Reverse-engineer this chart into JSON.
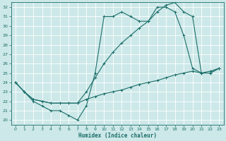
{
  "xlabel": "Humidex (Indice chaleur)",
  "bg_color": "#cde8e8",
  "grid_color": "#b8d8d8",
  "line_color": "#1a6e6a",
  "xlim": [
    -0.5,
    23.5
  ],
  "ylim": [
    19.5,
    32.5
  ],
  "xticks": [
    0,
    1,
    2,
    3,
    4,
    5,
    6,
    7,
    8,
    9,
    10,
    11,
    12,
    13,
    14,
    15,
    16,
    17,
    18,
    19,
    20,
    21,
    22,
    23
  ],
  "yticks": [
    20,
    21,
    22,
    23,
    24,
    25,
    26,
    27,
    28,
    29,
    30,
    31,
    32
  ],
  "line1_x": [
    0,
    1,
    2,
    3,
    4,
    5,
    6,
    7,
    8,
    9,
    10,
    11,
    12,
    13,
    14,
    15,
    16,
    17,
    18,
    19,
    20,
    21,
    22,
    23
  ],
  "line1_y": [
    24.0,
    23.0,
    22.0,
    21.5,
    21.0,
    21.0,
    20.5,
    20.0,
    21.5,
    25.0,
    31.0,
    31.0,
    31.5,
    31.0,
    30.5,
    30.5,
    32.0,
    32.0,
    31.5,
    29.0,
    25.5,
    25.0,
    25.0,
    25.5
  ],
  "line2_x": [
    0,
    1,
    2,
    3,
    4,
    5,
    6,
    7,
    8,
    9,
    10,
    11,
    12,
    13,
    14,
    15,
    16,
    17,
    18,
    19,
    20,
    21,
    22,
    23
  ],
  "line2_y": [
    24.0,
    23.0,
    22.2,
    22.0,
    21.8,
    21.8,
    21.8,
    21.8,
    23.0,
    24.5,
    26.0,
    27.2,
    28.2,
    29.0,
    29.8,
    30.5,
    31.5,
    32.2,
    32.5,
    31.5,
    31.0,
    25.0,
    25.0,
    25.5
  ],
  "line3_x": [
    0,
    1,
    2,
    3,
    4,
    5,
    6,
    7,
    8,
    9,
    10,
    11,
    12,
    13,
    14,
    15,
    16,
    17,
    18,
    19,
    20,
    21,
    22,
    23
  ],
  "line3_y": [
    24.0,
    23.0,
    22.2,
    22.0,
    21.8,
    21.8,
    21.8,
    21.8,
    22.2,
    22.5,
    22.8,
    23.0,
    23.2,
    23.5,
    23.8,
    24.0,
    24.2,
    24.5,
    24.8,
    25.0,
    25.2,
    25.0,
    25.2,
    25.5
  ]
}
